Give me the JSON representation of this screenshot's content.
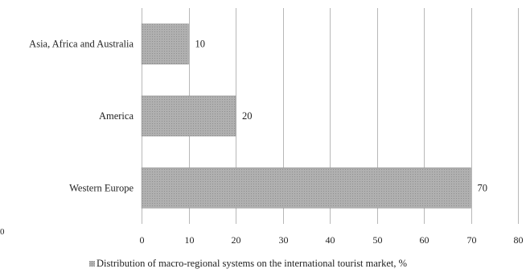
{
  "chart_data": {
    "type": "bar",
    "orientation": "horizontal",
    "categories": [
      "Asia, Africa and Australia",
      "America",
      "Western Europe"
    ],
    "series": [
      {
        "name": "Distribution of macro-regional systems on the international tourist market, %",
        "values": [
          10,
          20,
          70
        ]
      }
    ],
    "xlim": [
      0,
      80
    ],
    "xticks": [
      "0",
      "10",
      "20",
      "30",
      "40",
      "50",
      "60",
      "70",
      "80"
    ],
    "grid": true,
    "legend_position": "bottom",
    "data_labels": [
      "10",
      "20",
      "70"
    ]
  },
  "stray_text": "0",
  "colors": {
    "bar": "#a8a8a8",
    "bar_stroke": "#8c8c8c",
    "grid": "#b8b8b8"
  }
}
